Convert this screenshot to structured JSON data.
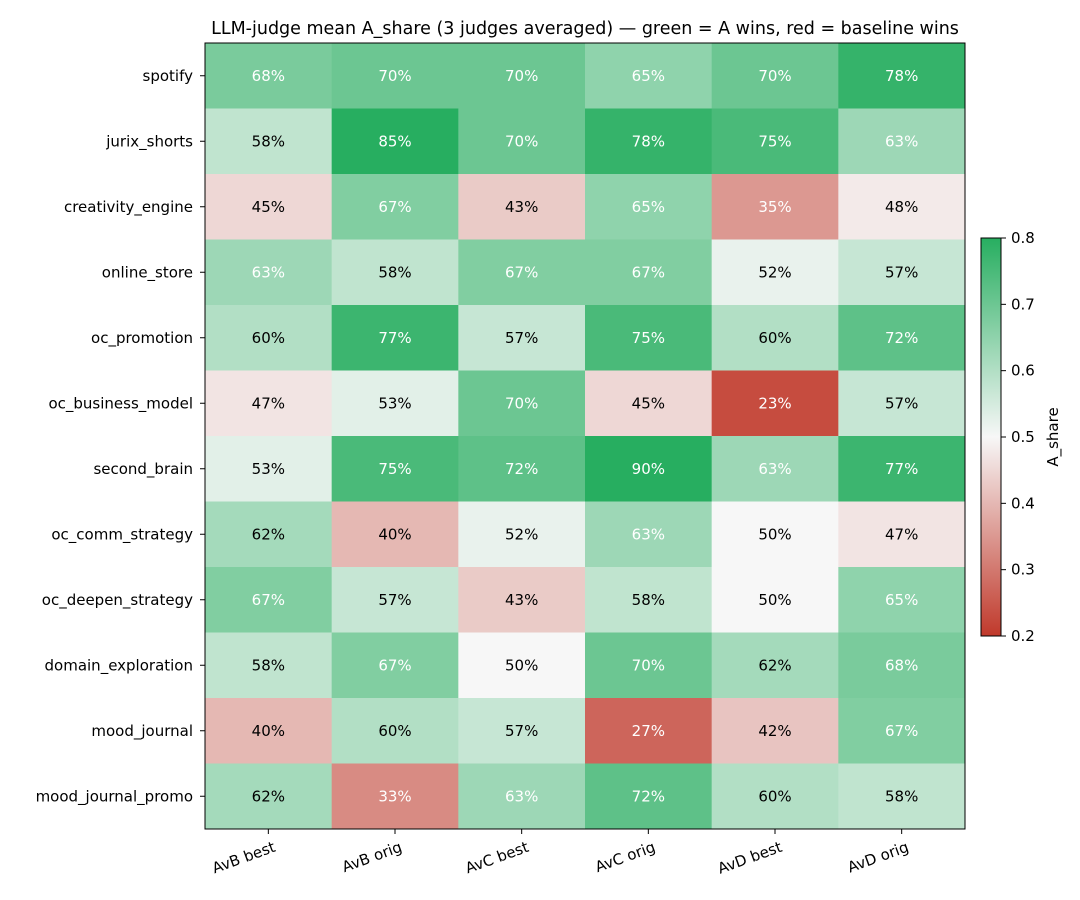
{
  "chart_data": {
    "type": "heatmap",
    "title": "LLM-judge mean A_share (3 judges averaged) — green = A wins, red = baseline wins",
    "columns": [
      "AvB best",
      "AvB orig",
      "AvC best",
      "AvC orig",
      "AvD best",
      "AvD orig"
    ],
    "rows": [
      "spotify",
      "jurix_shorts",
      "creativity_engine",
      "online_store",
      "oc_promotion",
      "oc_business_model",
      "second_brain",
      "oc_comm_strategy",
      "oc_deepen_strategy",
      "domain_exploration",
      "mood_journal",
      "mood_journal_promo"
    ],
    "values": [
      [
        0.68,
        0.7,
        0.7,
        0.65,
        0.7,
        0.78
      ],
      [
        0.58,
        0.85,
        0.7,
        0.78,
        0.75,
        0.63
      ],
      [
        0.45,
        0.67,
        0.43,
        0.65,
        0.35,
        0.48
      ],
      [
        0.63,
        0.58,
        0.67,
        0.67,
        0.52,
        0.57
      ],
      [
        0.6,
        0.77,
        0.57,
        0.75,
        0.6,
        0.72
      ],
      [
        0.47,
        0.53,
        0.7,
        0.45,
        0.23,
        0.57
      ],
      [
        0.53,
        0.75,
        0.72,
        0.9,
        0.63,
        0.77
      ],
      [
        0.62,
        0.4,
        0.52,
        0.63,
        0.5,
        0.47
      ],
      [
        0.67,
        0.57,
        0.43,
        0.58,
        0.5,
        0.65
      ],
      [
        0.58,
        0.67,
        0.5,
        0.7,
        0.62,
        0.68
      ],
      [
        0.4,
        0.6,
        0.57,
        0.27,
        0.42,
        0.67
      ],
      [
        0.62,
        0.33,
        0.63,
        0.72,
        0.6,
        0.58
      ]
    ],
    "labels": [
      [
        "68%",
        "70%",
        "70%",
        "65%",
        "70%",
        "78%"
      ],
      [
        "58%",
        "85%",
        "70%",
        "78%",
        "75%",
        "63%"
      ],
      [
        "45%",
        "67%",
        "43%",
        "65%",
        "35%",
        "48%"
      ],
      [
        "63%",
        "58%",
        "67%",
        "67%",
        "52%",
        "57%"
      ],
      [
        "60%",
        "77%",
        "57%",
        "75%",
        "60%",
        "72%"
      ],
      [
        "47%",
        "53%",
        "70%",
        "45%",
        "23%",
        "57%"
      ],
      [
        "53%",
        "75%",
        "72%",
        "90%",
        "63%",
        "77%"
      ],
      [
        "62%",
        "40%",
        "52%",
        "63%",
        "50%",
        "47%"
      ],
      [
        "67%",
        "57%",
        "43%",
        "58%",
        "50%",
        "65%"
      ],
      [
        "58%",
        "67%",
        "50%",
        "70%",
        "62%",
        "68%"
      ],
      [
        "40%",
        "60%",
        "57%",
        "27%",
        "42%",
        "67%"
      ],
      [
        "62%",
        "33%",
        "63%",
        "72%",
        "60%",
        "58%"
      ]
    ],
    "colorbar": {
      "label": "A_share",
      "vmin": 0.2,
      "vmax": 0.8,
      "ticks": [
        "0.2",
        "0.3",
        "0.4",
        "0.5",
        "0.6",
        "0.7",
        "0.8"
      ]
    },
    "colors": {
      "low": "#c0392b",
      "mid": "#f7f7f7",
      "high": "#27ae60"
    }
  }
}
